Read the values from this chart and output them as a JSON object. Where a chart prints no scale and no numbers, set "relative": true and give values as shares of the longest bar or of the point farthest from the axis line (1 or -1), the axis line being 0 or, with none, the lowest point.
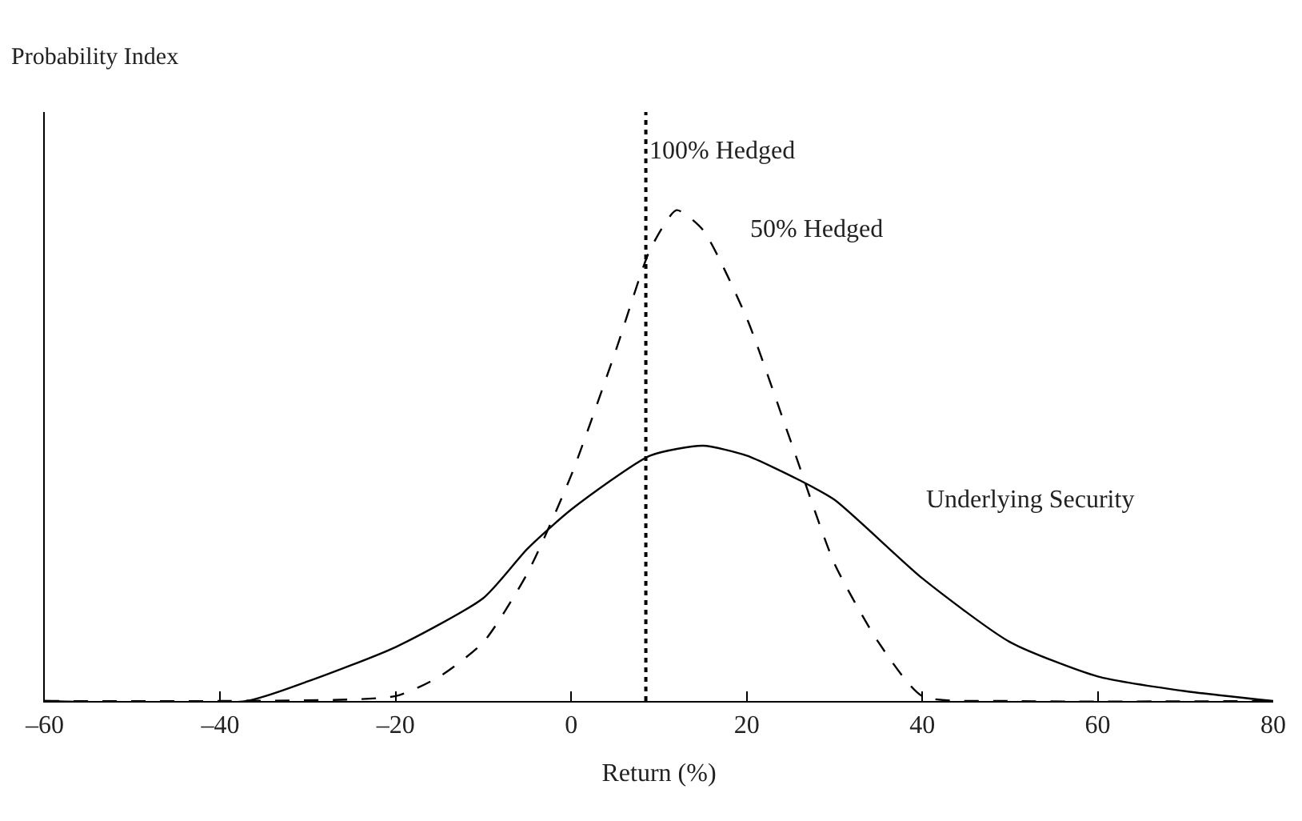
{
  "chart_data": {
    "type": "line",
    "relative": true,
    "annotations": [
      "Probability Index"
    ],
    "xlabel": "Return (%)",
    "xlim": [
      -60,
      80
    ],
    "xticks": [
      {
        "value": -60,
        "label": "–60"
      },
      {
        "value": -40,
        "label": "–40"
      },
      {
        "value": -20,
        "label": "–20"
      },
      0,
      20,
      40,
      60,
      80
    ],
    "marker": "none",
    "series": [
      {
        "name": "Underlying Security",
        "color": "#000000",
        "line_style": "solid",
        "x": [
          -60,
          -37,
          -30,
          -20,
          -10,
          -5,
          0,
          9,
          15,
          20,
          26,
          30,
          40,
          50,
          60,
          70,
          80
        ],
        "values": [
          0,
          0,
          0.04,
          0.11,
          0.21,
          0.31,
          0.39,
          0.5,
          0.52,
          0.5,
          0.45,
          0.41,
          0.25,
          0.12,
          0.05,
          0.02,
          0
        ]
      },
      {
        "name": "50% Hedged",
        "color": "#000000",
        "line_style": "dashed",
        "x": [
          -60,
          -40,
          -20,
          -15,
          -10,
          -5,
          0,
          5,
          9,
          12,
          15,
          20,
          25,
          30,
          35,
          40,
          50,
          80
        ],
        "values": [
          0,
          0,
          0.01,
          0.05,
          0.12,
          0.26,
          0.46,
          0.71,
          0.92,
          1,
          0.96,
          0.78,
          0.53,
          0.28,
          0.12,
          0.01,
          0,
          0
        ]
      }
    ],
    "ref_lines": [
      {
        "axis": "x",
        "value": 8.5,
        "label": "100% Hedged",
        "color": "#000000",
        "line_style": "dotted"
      }
    ]
  }
}
